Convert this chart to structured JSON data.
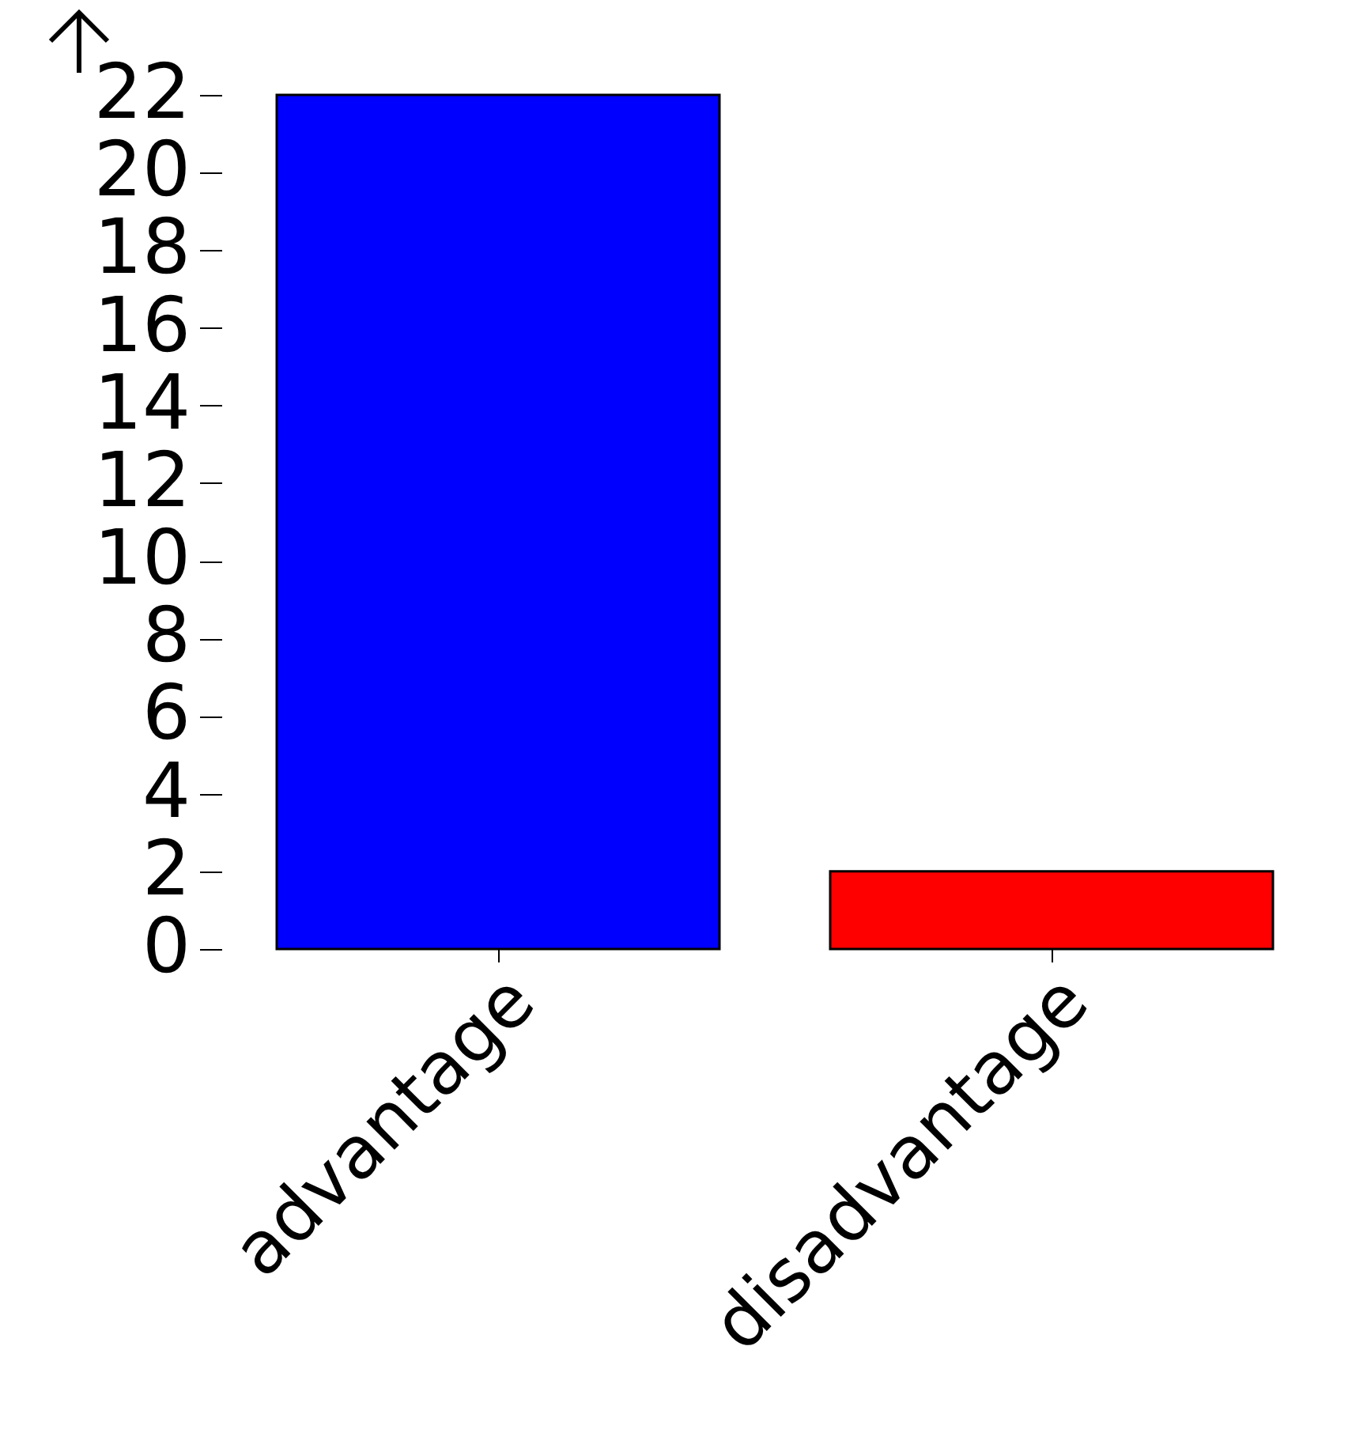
{
  "chart_data": {
    "type": "bar",
    "categories": [
      "advantage",
      "disadvantage"
    ],
    "values": [
      22,
      2
    ],
    "colors": [
      "#0000ff",
      "#ff0000"
    ],
    "ylim": [
      0,
      22
    ],
    "yticks": [
      0,
      2,
      4,
      6,
      8,
      10,
      12,
      14,
      16,
      18,
      20,
      22
    ],
    "grid": false
  }
}
